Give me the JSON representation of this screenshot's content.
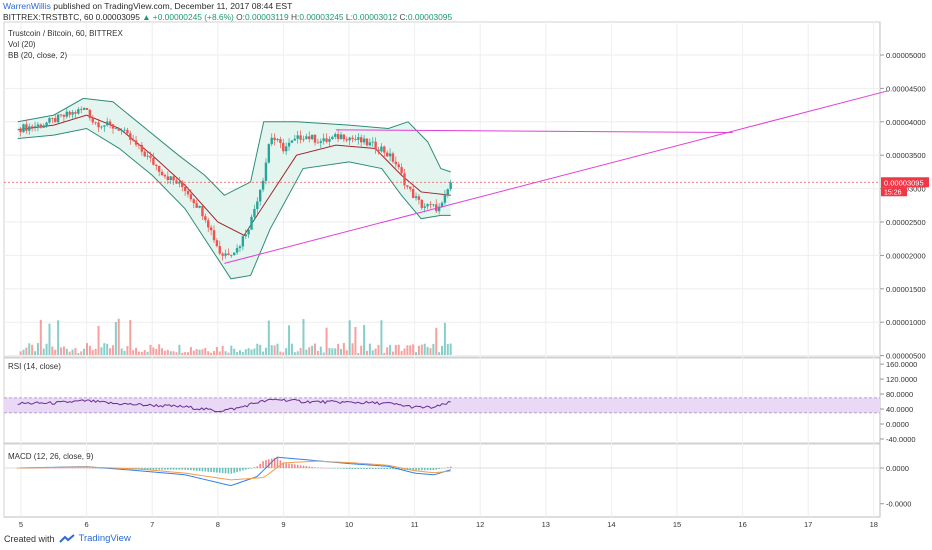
{
  "header": {
    "user": "WarrenWillis",
    "published": "published on TradingView.com, December 11, 2017 08:44 EST",
    "symbol": "BITTREX:TRSTBTC, 60",
    "last": "0.00003095",
    "change": "▲ +0.00000245 (+8.6%)",
    "o_label": "O:",
    "o": "0.00003119",
    "h_label": "H:",
    "h": "0.00003245",
    "l_label": "L:",
    "l": "0.00003012",
    "c_label": "C:",
    "c": "0.00003095"
  },
  "panes": {
    "main": {
      "title": "Trustcoin / Bitcoin, 60, BITTREX",
      "vol": "Vol (20)",
      "bb": "BB (20, close, 2)"
    },
    "rsi": {
      "title": "RSI (14, close)"
    },
    "macd": {
      "title": "MACD (12, 26, close, 9)"
    }
  },
  "price_badge": {
    "value": "0.00003095",
    "countdown": "15:26",
    "color": "#f23645"
  },
  "colors": {
    "up": "#26a69a",
    "down": "#ef5350",
    "bb": "#2e8b7a",
    "bb_fill": "#e4f5ef",
    "basis": "#a0262e",
    "trend": "#e040d8",
    "rsi": "#6a2c91",
    "rsi_band": "#e9d9f6",
    "macd": "#2f80ed",
    "signal": "#f39c4a",
    "grid": "#eeeeee"
  },
  "footer": {
    "created_with": "Created with",
    "brand": "TradingView"
  },
  "chart_data": {
    "type": "candlestick",
    "x_axis": {
      "ticks": [
        "5",
        "6",
        "7",
        "8",
        "9",
        "10",
        "11",
        "12",
        "13",
        "14",
        "15",
        "16",
        "17",
        "18"
      ]
    },
    "price_axis": {
      "ticks": [
        "0.00005000",
        "0.00004500",
        "0.00004000",
        "0.00003500",
        "0.00003000",
        "0.00002500",
        "0.00002000",
        "0.00001500",
        "0.00001000",
        "0.00000500"
      ],
      "range": [
        4.5e-06,
        5.2e-06
      ]
    },
    "rsi_axis": {
      "ticks": [
        "160.0000",
        "120.0000",
        "80.0000",
        "40.0000",
        "0.0000",
        "-40.0000"
      ],
      "band": [
        30,
        70
      ]
    },
    "macd_axis": {
      "ticks": [
        "0.0000",
        "-0.0000"
      ]
    },
    "close_path": [
      [
        4.95,
        3.9e-05
      ],
      [
        5.3,
        3.95e-05
      ],
      [
        5.7,
        4.1e-05
      ],
      [
        6.0,
        4.2e-05
      ],
      [
        6.1,
        4e-05
      ],
      [
        6.5,
        3.9e-05
      ],
      [
        6.9,
        3.5e-05
      ],
      [
        7.2,
        3.2e-05
      ],
      [
        7.5,
        3e-05
      ],
      [
        7.8,
        2.6e-05
      ],
      [
        8.05,
        2e-05
      ],
      [
        8.3,
        2.1e-05
      ],
      [
        8.5,
        2.5e-05
      ],
      [
        8.7,
        3.2e-05
      ],
      [
        8.8,
        3.8e-05
      ],
      [
        9.0,
        3.6e-05
      ],
      [
        9.3,
        3.8e-05
      ],
      [
        9.6,
        3.7e-05
      ],
      [
        9.9,
        3.8e-05
      ],
      [
        10.2,
        3.7e-05
      ],
      [
        10.5,
        3.6e-05
      ],
      [
        10.7,
        3.4e-05
      ],
      [
        10.9,
        3e-05
      ],
      [
        11.1,
        2.75e-05
      ],
      [
        11.4,
        2.7e-05
      ],
      [
        11.55,
        3.095e-05
      ]
    ],
    "bb_upper": [
      [
        4.95,
        4e-05
      ],
      [
        5.5,
        4.1e-05
      ],
      [
        5.95,
        4.35e-05
      ],
      [
        6.4,
        4.3e-05
      ],
      [
        6.9,
        3.9e-05
      ],
      [
        7.4,
        3.5e-05
      ],
      [
        7.8,
        3.2e-05
      ],
      [
        8.1,
        2.9e-05
      ],
      [
        8.5,
        3.1e-05
      ],
      [
        8.7,
        4e-05
      ],
      [
        9.2,
        4e-05
      ],
      [
        10.0,
        3.95e-05
      ],
      [
        10.6,
        3.9e-05
      ],
      [
        10.9,
        4e-05
      ],
      [
        11.2,
        3.7e-05
      ],
      [
        11.4,
        3.3e-05
      ],
      [
        11.55,
        3.25e-05
      ]
    ],
    "bb_lower": [
      [
        4.95,
        3.75e-05
      ],
      [
        5.5,
        3.8e-05
      ],
      [
        6.0,
        3.9e-05
      ],
      [
        6.5,
        3.6e-05
      ],
      [
        7.0,
        3.2e-05
      ],
      [
        7.5,
        2.7e-05
      ],
      [
        7.9,
        2.1e-05
      ],
      [
        8.2,
        1.65e-05
      ],
      [
        8.5,
        1.7e-05
      ],
      [
        8.8,
        2.4e-05
      ],
      [
        9.3,
        3.3e-05
      ],
      [
        10.0,
        3.4e-05
      ],
      [
        10.5,
        3.3e-05
      ],
      [
        10.8,
        2.9e-05
      ],
      [
        11.1,
        2.55e-05
      ],
      [
        11.4,
        2.6e-05
      ],
      [
        11.55,
        2.6e-05
      ]
    ],
    "bb_basis": [
      [
        4.95,
        3.88e-05
      ],
      [
        5.5,
        3.95e-05
      ],
      [
        6.0,
        4.1e-05
      ],
      [
        6.5,
        3.9e-05
      ],
      [
        7.0,
        3.5e-05
      ],
      [
        7.5,
        3.05e-05
      ],
      [
        8.0,
        2.5e-05
      ],
      [
        8.4,
        2.3e-05
      ],
      [
        8.8,
        2.9e-05
      ],
      [
        9.2,
        3.5e-05
      ],
      [
        9.8,
        3.65e-05
      ],
      [
        10.4,
        3.6e-05
      ],
      [
        10.8,
        3.2e-05
      ],
      [
        11.1,
        2.95e-05
      ],
      [
        11.55,
        2.9e-05
      ]
    ],
    "trendlines": [
      {
        "from": [
          8.1,
          1.88e-05
        ],
        "to": [
          18.2,
          4.46e-05
        ]
      },
      {
        "from": [
          9.8,
          3.88e-05
        ],
        "to": [
          15.85,
          3.84e-05
        ]
      }
    ],
    "last_price_line": 3.095e-05,
    "rsi_path": [
      [
        4.95,
        55
      ],
      [
        5.5,
        56
      ],
      [
        6.0,
        62
      ],
      [
        6.4,
        55
      ],
      [
        7.0,
        50
      ],
      [
        7.5,
        46
      ],
      [
        8.0,
        35
      ],
      [
        8.3,
        42
      ],
      [
        8.6,
        58
      ],
      [
        8.9,
        66
      ],
      [
        9.3,
        60
      ],
      [
        10.0,
        58
      ],
      [
        10.6,
        55
      ],
      [
        11.0,
        45
      ],
      [
        11.3,
        44
      ],
      [
        11.55,
        58
      ]
    ],
    "macd_path": [
      [
        4.95,
        0
      ],
      [
        6.0,
        0.4
      ],
      [
        6.8,
        -0.8
      ],
      [
        7.5,
        -2.0
      ],
      [
        8.2,
        -5.2
      ],
      [
        8.6,
        -2.5
      ],
      [
        8.9,
        3.2
      ],
      [
        9.3,
        2.5
      ],
      [
        10.0,
        1.3
      ],
      [
        10.6,
        0.5
      ],
      [
        11.0,
        -1.5
      ],
      [
        11.3,
        -2.0
      ],
      [
        11.55,
        -0.5
      ]
    ],
    "signal_path": [
      [
        4.95,
        0
      ],
      [
        6.0,
        0.3
      ],
      [
        6.8,
        -0.3
      ],
      [
        7.5,
        -1.5
      ],
      [
        8.2,
        -3.5
      ],
      [
        8.7,
        -2.8
      ],
      [
        9.0,
        1.5
      ],
      [
        9.5,
        2.0
      ],
      [
        10.0,
        1.6
      ],
      [
        10.6,
        0.8
      ],
      [
        11.0,
        -0.8
      ],
      [
        11.3,
        -1.4
      ],
      [
        11.55,
        -0.9
      ]
    ]
  }
}
